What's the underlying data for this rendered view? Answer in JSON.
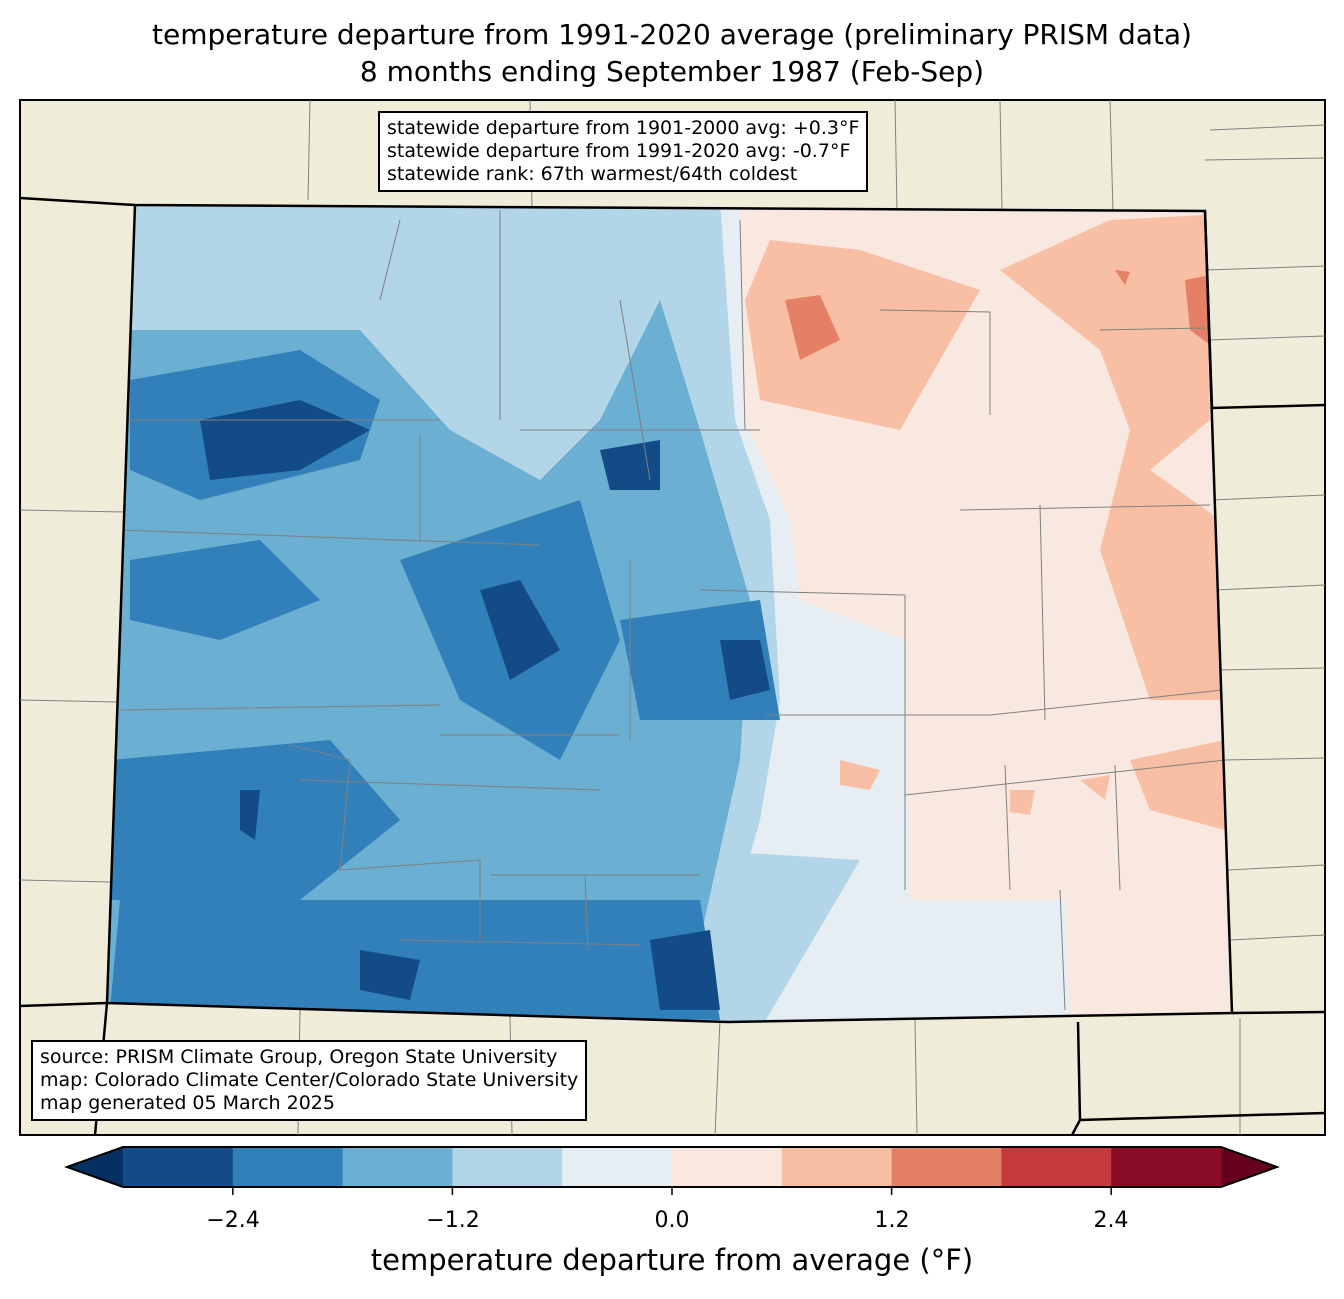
{
  "title_line1": "temperature departure from 1991-2020 average (preliminary PRISM data)",
  "title_line2": "8 months ending September 1987 (Feb-Sep)",
  "stats": {
    "line1": "statewide departure from 1901-2000 avg: +0.3°F",
    "line2": "statewide departure from 1991-2020 avg: -0.7°F",
    "line3": "statewide rank: 67th warmest/64th coldest"
  },
  "credits": {
    "line1": "source: PRISM Climate Group, Oregon State University",
    "line2": "map: Colorado Climate Center/Colorado State University",
    "line3": "map generated 05 March 2025"
  },
  "colorbar": {
    "label": "temperature departure from average (°F)",
    "bounds": [
      -3.0,
      -2.4,
      -1.8,
      -1.2,
      -0.6,
      0.0,
      0.6,
      1.2,
      1.8,
      2.4,
      3.0
    ],
    "colors": [
      "#134b87",
      "#3280ba",
      "#6bafd2",
      "#b3d5e8",
      "#e6eef4",
      "#f9e8df",
      "#f9bfa4",
      "#e48066",
      "#c4393b",
      "#8a0b25"
    ],
    "under_color": "#053061",
    "over_color": "#67001f",
    "ticks": [
      "−2.4",
      "−1.2",
      "0.0",
      "1.2",
      "2.4"
    ]
  },
  "colors": {
    "land": "#efedda",
    "border": "#000000",
    "county": "#808080"
  }
}
